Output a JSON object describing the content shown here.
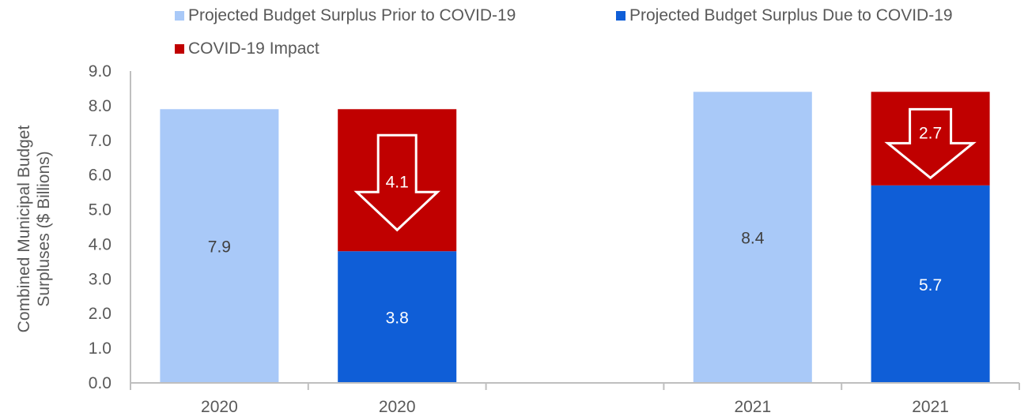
{
  "chart_data": {
    "type": "bar",
    "stacked": true,
    "title": "",
    "xlabel": "",
    "ylabel_lines": [
      "Combined  Municipal Budget",
      "Surpluses ($ Billions)"
    ],
    "ylim": [
      0,
      9
    ],
    "yticks": [
      "0.0",
      "1.0",
      "2.0",
      "3.0",
      "4.0",
      "5.0",
      "6.0",
      "7.0",
      "8.0",
      "9.0"
    ],
    "grid": false,
    "legend_position": "top",
    "categories": [
      "2020",
      "2020",
      "",
      "2021",
      "2021"
    ],
    "series": [
      {
        "name": "Projected Budget Surplus Prior to COVID-19",
        "color": "#A9C9F8",
        "values": [
          7.9,
          null,
          null,
          8.4,
          null
        ],
        "labels": [
          "7.9",
          null,
          null,
          "8.4",
          null
        ],
        "label_color": "#404040"
      },
      {
        "name": "Projected Budget Surplus Due to COVID-19",
        "color": "#0F5ED7",
        "values": [
          null,
          3.8,
          null,
          null,
          5.7
        ],
        "labels": [
          null,
          "3.8",
          null,
          null,
          "5.7"
        ],
        "label_color": "#ffffff"
      },
      {
        "name": "COVID-19 Impact",
        "color": "#C00000",
        "values": [
          null,
          4.1,
          null,
          null,
          2.7
        ],
        "labels": [
          null,
          "4.1",
          null,
          null,
          "2.7"
        ],
        "label_color": "#ffffff"
      }
    ],
    "annotations": [
      {
        "type": "down-arrow",
        "category_index": 1,
        "text": "4.1"
      },
      {
        "type": "down-arrow",
        "category_index": 4,
        "text": "2.7"
      }
    ]
  },
  "legend": {
    "items": [
      {
        "label": "Projected Budget Surplus Prior to COVID-19",
        "color": "#A9C9F8"
      },
      {
        "label": "Projected Budget Surplus Due to COVID-19",
        "color": "#0F5ED7"
      },
      {
        "label": "COVID-19 Impact",
        "color": "#C00000"
      }
    ]
  },
  "colors": {
    "axis": "#BFBFBF",
    "text": "#595959"
  }
}
